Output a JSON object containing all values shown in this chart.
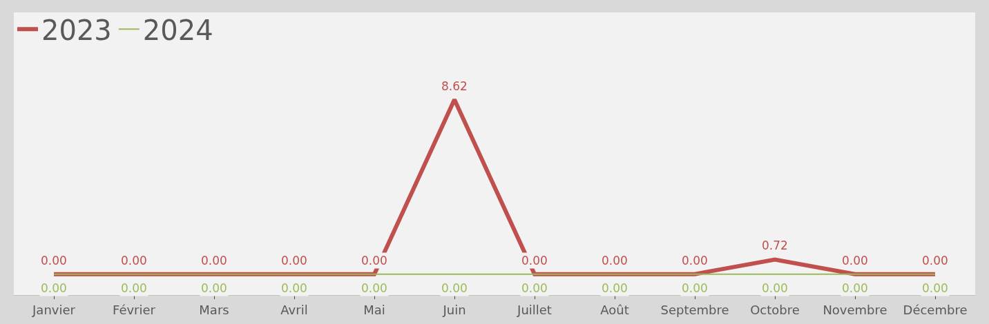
{
  "chart_data": {
    "type": "line",
    "categories": [
      "Janvier",
      "Février",
      "Mars",
      "Avril",
      "Mai",
      "Juin",
      "Juillet",
      "Août",
      "Septembre",
      "Octobre",
      "Novembre",
      "Décembre"
    ],
    "series": [
      {
        "name": "2023",
        "color": "#c0504d",
        "values": [
          0,
          0,
          0,
          0,
          0,
          8.62,
          0,
          0,
          0,
          0.72,
          0,
          0
        ],
        "value_labels": [
          "0.00",
          "0.00",
          "0.00",
          "0.00",
          "0.00",
          "8.62",
          "0.00",
          "0.00",
          "0.00",
          "0.72",
          "0.00",
          "0.00"
        ]
      },
      {
        "name": "2024",
        "color": "#9bbb59",
        "values": [
          0,
          0,
          0,
          0,
          0,
          0,
          0,
          0,
          0,
          0,
          0,
          0
        ],
        "value_labels": [
          "0.00",
          "0.00",
          "0.00",
          "0.00",
          "0.00",
          "0.00",
          "0.00",
          "0.00",
          "0.00",
          "0.00",
          "0.00",
          "0.00"
        ]
      }
    ],
    "tick_labels": "x",
    "legend": "top left",
    "grid": false,
    "marker": "none",
    "line_style": "solid"
  }
}
